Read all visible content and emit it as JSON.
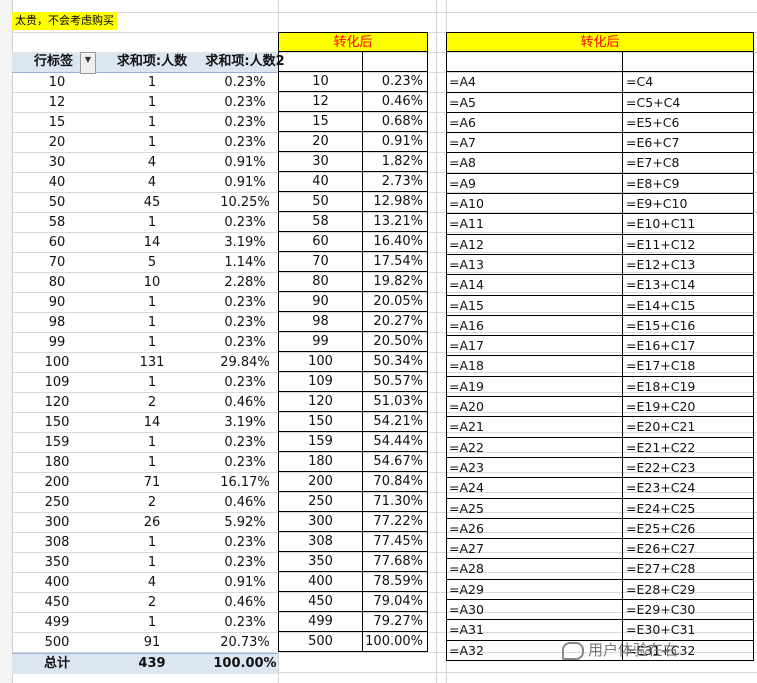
{
  "note": "太贵，不会考虑购买",
  "pivot": {
    "headers": [
      "行标签",
      "求和项:人数",
      "求和项:人数2"
    ],
    "rows": [
      [
        "10",
        "1",
        "0.23%"
      ],
      [
        "12",
        "1",
        "0.23%"
      ],
      [
        "15",
        "1",
        "0.23%"
      ],
      [
        "20",
        "1",
        "0.23%"
      ],
      [
        "30",
        "4",
        "0.91%"
      ],
      [
        "40",
        "4",
        "0.91%"
      ],
      [
        "50",
        "45",
        "10.25%"
      ],
      [
        "58",
        "1",
        "0.23%"
      ],
      [
        "60",
        "14",
        "3.19%"
      ],
      [
        "70",
        "5",
        "1.14%"
      ],
      [
        "80",
        "10",
        "2.28%"
      ],
      [
        "90",
        "1",
        "0.23%"
      ],
      [
        "98",
        "1",
        "0.23%"
      ],
      [
        "99",
        "1",
        "0.23%"
      ],
      [
        "100",
        "131",
        "29.84%"
      ],
      [
        "109",
        "1",
        "0.23%"
      ],
      [
        "120",
        "2",
        "0.46%"
      ],
      [
        "150",
        "14",
        "3.19%"
      ],
      [
        "159",
        "1",
        "0.23%"
      ],
      [
        "180",
        "1",
        "0.23%"
      ],
      [
        "200",
        "71",
        "16.17%"
      ],
      [
        "250",
        "2",
        "0.46%"
      ],
      [
        "300",
        "26",
        "5.92%"
      ],
      [
        "308",
        "1",
        "0.23%"
      ],
      [
        "350",
        "1",
        "0.23%"
      ],
      [
        "400",
        "4",
        "0.91%"
      ],
      [
        "450",
        "2",
        "0.46%"
      ],
      [
        "499",
        "1",
        "0.23%"
      ],
      [
        "500",
        "91",
        "20.73%"
      ]
    ],
    "total": [
      "总计",
      "439",
      "100.00%"
    ]
  },
  "converted": {
    "title": "转化后",
    "rows": [
      [
        "10",
        "0.23%"
      ],
      [
        "12",
        "0.46%"
      ],
      [
        "15",
        "0.68%"
      ],
      [
        "20",
        "0.91%"
      ],
      [
        "30",
        "1.82%"
      ],
      [
        "40",
        "2.73%"
      ],
      [
        "50",
        "12.98%"
      ],
      [
        "58",
        "13.21%"
      ],
      [
        "60",
        "16.40%"
      ],
      [
        "70",
        "17.54%"
      ],
      [
        "80",
        "19.82%"
      ],
      [
        "90",
        "20.05%"
      ],
      [
        "98",
        "20.27%"
      ],
      [
        "99",
        "20.50%"
      ],
      [
        "100",
        "50.34%"
      ],
      [
        "109",
        "50.57%"
      ],
      [
        "120",
        "51.03%"
      ],
      [
        "150",
        "54.21%"
      ],
      [
        "159",
        "54.44%"
      ],
      [
        "180",
        "54.67%"
      ],
      [
        "200",
        "70.84%"
      ],
      [
        "250",
        "71.30%"
      ],
      [
        "300",
        "77.22%"
      ],
      [
        "308",
        "77.45%"
      ],
      [
        "350",
        "77.68%"
      ],
      [
        "400",
        "78.59%"
      ],
      [
        "450",
        "79.04%"
      ],
      [
        "499",
        "79.27%"
      ],
      [
        "500",
        "100.00%"
      ]
    ]
  },
  "formulas": {
    "title": "转化后",
    "rows": [
      [
        "=A4",
        "=C4"
      ],
      [
        "=A5",
        "=C5+C4"
      ],
      [
        "=A6",
        "=E5+C6"
      ],
      [
        "=A7",
        "=E6+C7"
      ],
      [
        "=A8",
        "=E7+C8"
      ],
      [
        "=A9",
        "=E8+C9"
      ],
      [
        "=A10",
        "=E9+C10"
      ],
      [
        "=A11",
        "=E10+C11"
      ],
      [
        "=A12",
        "=E11+C12"
      ],
      [
        "=A13",
        "=E12+C13"
      ],
      [
        "=A14",
        "=E13+C14"
      ],
      [
        "=A15",
        "=E14+C15"
      ],
      [
        "=A16",
        "=E15+C16"
      ],
      [
        "=A17",
        "=E16+C17"
      ],
      [
        "=A18",
        "=E17+C18"
      ],
      [
        "=A19",
        "=E18+C19"
      ],
      [
        "=A20",
        "=E19+C20"
      ],
      [
        "=A21",
        "=E20+C21"
      ],
      [
        "=A22",
        "=E21+C22"
      ],
      [
        "=A23",
        "=E22+C23"
      ],
      [
        "=A24",
        "=E23+C24"
      ],
      [
        "=A25",
        "=E24+C25"
      ],
      [
        "=A26",
        "=E25+C26"
      ],
      [
        "=A27",
        "=E26+C27"
      ],
      [
        "=A28",
        "=E27+C28"
      ],
      [
        "=A29",
        "=E28+C29"
      ],
      [
        "=A30",
        "=E29+C30"
      ],
      [
        "=A31",
        "=E30+C31"
      ],
      [
        "=A32",
        "=E31+C32"
      ]
    ]
  },
  "watermark": "用户体验在右"
}
